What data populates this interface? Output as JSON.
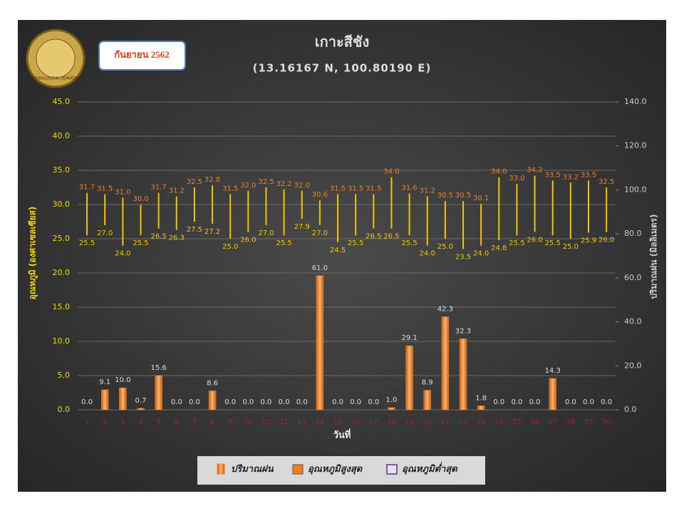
{
  "chart_data": {
    "type": "bar",
    "title": "เกาะสีชัง",
    "subtitle": "(13.16167 N, 100.80190 E)",
    "period": "กันยายน 2562",
    "logo_text": "METEOROLOGICAL DEPARTMENT",
    "xlabel": "วันที่",
    "ylabel": "อุณหภูมิ (องศาเซลเซียส)",
    "y2label": "ปริมาณฝน (มิลลิเมตร)",
    "categories": [
      "1",
      "2",
      "3",
      "4",
      "5",
      "6",
      "7",
      "8",
      "9",
      "10",
      "11",
      "12",
      "13",
      "14",
      "15",
      "16",
      "17",
      "18",
      "19",
      "20",
      "21",
      "22",
      "23",
      "24",
      "25",
      "26",
      "27",
      "28",
      "29",
      "30"
    ],
    "ylim": [
      0,
      45
    ],
    "yticks": [
      {
        "value": 0,
        "label": "0.0"
      },
      {
        "value": 5,
        "label": "5.0"
      },
      {
        "value": 10,
        "label": "10.0"
      },
      {
        "value": 15,
        "label": "15.0"
      },
      {
        "value": 20,
        "label": "20.0"
      },
      {
        "value": 25,
        "label": "25.0"
      },
      {
        "value": 30,
        "label": "30.0"
      },
      {
        "value": 35,
        "label": "35.0"
      },
      {
        "value": 40,
        "label": "40.0"
      },
      {
        "value": 45,
        "label": "45.0"
      }
    ],
    "y2lim": [
      0,
      140
    ],
    "y2ticks": [
      {
        "value": 0,
        "label": "0.0"
      },
      {
        "value": 20,
        "label": "20.0"
      },
      {
        "value": 40,
        "label": "40.0"
      },
      {
        "value": 60,
        "label": "60.0"
      },
      {
        "value": 80,
        "label": "80.0"
      },
      {
        "value": 100,
        "label": "100.0"
      },
      {
        "value": 120,
        "label": "120.0"
      },
      {
        "value": 140,
        "label": "140.0"
      }
    ],
    "grid": true,
    "legend": "bottom",
    "range_color": "#f5c400",
    "series": [
      {
        "name": "ปริมาณฝน",
        "color": "#f07f22",
        "axis": "y2",
        "values": [
          0,
          9.1,
          10,
          0.7,
          15.6,
          0,
          0,
          8.6,
          0,
          0,
          0,
          0,
          0,
          61,
          0,
          0,
          0,
          1,
          29.1,
          8.9,
          42.3,
          32.3,
          1.8,
          0,
          0,
          0,
          14.3,
          0,
          0,
          0
        ],
        "value_labels": [
          "0.0",
          "9.1",
          "10.0",
          "0.7",
          "15.6",
          "0.0",
          "0.0",
          "8.6",
          "0.0",
          "0.0",
          "0.0",
          "0.0",
          "0.0",
          "61.0",
          "0.0",
          "0.0",
          "0.0",
          "1.0",
          "29.1",
          "8.9",
          "42.3",
          "32.3",
          "1.8",
          "0.0",
          "0.0",
          "0.0",
          "14.3",
          "0.0",
          "0.0",
          "0.0"
        ]
      },
      {
        "name": "อุณหภูมิสูงสุด",
        "color": "#f07f22",
        "values": [
          31.7,
          31.5,
          31,
          30,
          31.7,
          31.2,
          32.5,
          32.8,
          31.5,
          32,
          32.5,
          32.2,
          32,
          30.6,
          31.5,
          31.5,
          31.5,
          34,
          31.6,
          31.2,
          30.5,
          30.5,
          30.1,
          34,
          33,
          34.2,
          33.5,
          33.2,
          33.5,
          32.5
        ],
        "value_labels": [
          "31.7",
          "31.5",
          "31.0",
          "30.0",
          "31.7",
          "31.2",
          "32.5",
          "32.8",
          "31.5",
          "32.0",
          "32.5",
          "32.2",
          "32.0",
          "30.6",
          "31.5",
          "31.5",
          "31.5",
          "34.0",
          "31.6",
          "31.2",
          "30.5",
          "30.5",
          "30.1",
          "34.0",
          "33.0",
          "34.2",
          "33.5",
          "33.2",
          "33.5",
          "32.5"
        ]
      },
      {
        "name": "อุณหภูมิต่ำสุด",
        "color": "#7f5fa0",
        "values": [
          25.5,
          27,
          24,
          25.5,
          26.5,
          26.3,
          27.5,
          27.2,
          25,
          26,
          27,
          25.5,
          27.9,
          27,
          24.5,
          25.5,
          26.5,
          26.5,
          25.5,
          24,
          25,
          23.5,
          24,
          24.8,
          25.5,
          26,
          25.5,
          25,
          25.9,
          26
        ],
        "value_labels": [
          "25.5",
          "27.0",
          "24.0",
          "25.5",
          "26.5",
          "26.3",
          "27.5",
          "27.2",
          "25.0",
          "26.0",
          "27.0",
          "25.5",
          "27.9",
          "27.0",
          "24.5",
          "25.5",
          "26.5",
          "26.5",
          "25.5",
          "24.0",
          "25.0",
          "23.5",
          "24.0",
          "24.8",
          "25.5",
          "26.0",
          "25.5",
          "25.0",
          "25.9",
          "26.0"
        ]
      }
    ]
  }
}
